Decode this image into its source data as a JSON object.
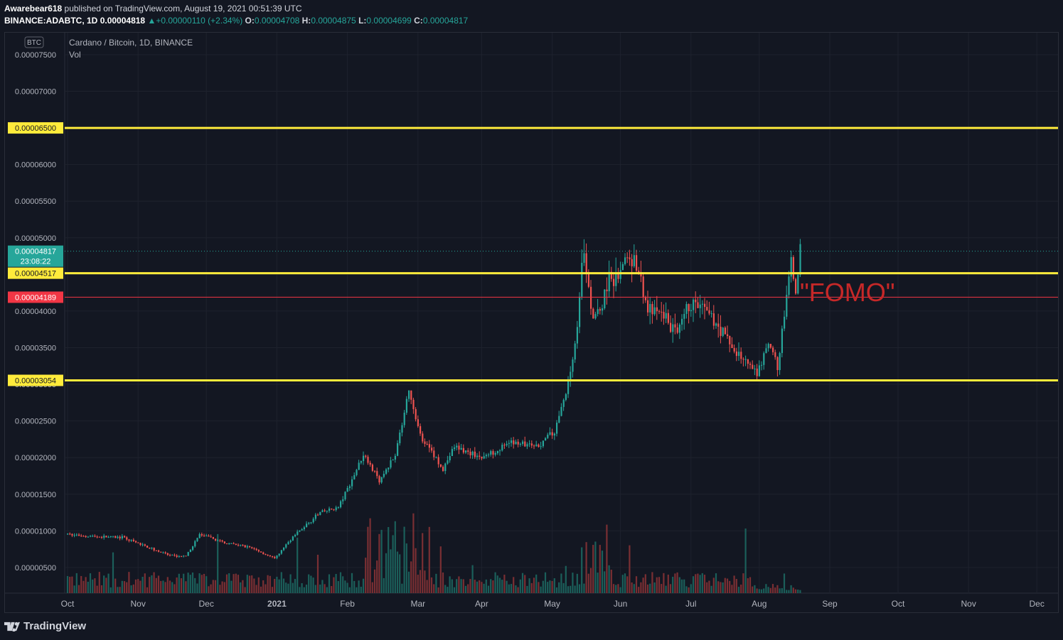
{
  "header": {
    "publisher": "Awarebear618",
    "published_text": "published on TradingView.com, August 19, 2021 00:51:39 UTC",
    "symbol": "BINANCE:ADABTC, 1D",
    "last": "0.00004818",
    "change": "+0.00000110 (+2.34%)",
    "o_label": "O:",
    "o_value": "0.00004708",
    "h_label": "H:",
    "h_value": "0.00004875",
    "l_label": "L:",
    "l_value": "0.00004699",
    "c_label": "C:",
    "c_value": "0.00004817"
  },
  "legend": {
    "title": "Cardano / Bitcoin, 1D, BINANCE",
    "volume_label": "Vol"
  },
  "currency_badge": "BTC",
  "footer": {
    "brand": "TradingView"
  },
  "colors": {
    "background": "#131722",
    "up": "#26a69a",
    "down": "#ef5350",
    "level_line": "#ffeb3b",
    "red_line": "#f23645",
    "annotation": "#c62828"
  },
  "chart_data": {
    "type": "candlestick",
    "x_tick_labels": [
      "Oct",
      "Nov",
      "Dec",
      "2021",
      "Feb",
      "Mar",
      "Apr",
      "May",
      "Jun",
      "Jul",
      "Aug",
      "Sep",
      "Oct",
      "Nov",
      "Dec"
    ],
    "y_tick_labels": [
      "0.00007500",
      "0.00007000",
      "0.00006500",
      "0.00006000",
      "0.00005500",
      "0.00005000",
      "0.00004500",
      "0.00004000",
      "0.00003500",
      "0.00003000",
      "0.00002500",
      "0.00002000",
      "0.00001500",
      "0.00001000",
      "0.00000500"
    ],
    "y_ticks": [
      7.5e-05,
      7e-05,
      6.5e-05,
      6e-05,
      5.5e-05,
      5e-05,
      4.5e-05,
      4e-05,
      3.5e-05,
      3e-05,
      2.5e-05,
      2e-05,
      1.5e-05,
      1e-05,
      5e-06
    ],
    "ylim": [
      1.5e-06,
      7.8e-05
    ],
    "horizontal_levels": [
      {
        "value": 6.5e-05,
        "label": "0.00006500",
        "color": "#ffeb3b"
      },
      {
        "value": 4.517e-05,
        "label": "0.00004517",
        "color": "#ffeb3b"
      },
      {
        "value": 3.054e-05,
        "label": "0.00003054",
        "color": "#ffeb3b"
      },
      {
        "value": 4.189e-05,
        "label": "0.00004189",
        "color": "#f23645"
      }
    ],
    "current_price": {
      "value": 4.817e-05,
      "label": "0.00004817",
      "countdown": "23:08:22"
    },
    "annotation": "\"FOMO\"",
    "series": [
      {
        "name": "Price",
        "type": "candlestick",
        "anchors": [
          [
            "2020-10-01",
            9.5e-06
          ],
          [
            "2020-10-15",
            9.2e-06
          ],
          [
            "2020-10-25",
            9.1e-06
          ],
          [
            "2020-11-05",
            7.8e-06
          ],
          [
            "2020-11-15",
            6.6e-06
          ],
          [
            "2020-11-22",
            6.5e-06
          ],
          [
            "2020-11-28",
            9.5e-06
          ],
          [
            "2020-12-10",
            8.3e-06
          ],
          [
            "2020-12-20",
            7.8e-06
          ],
          [
            "2020-12-31",
            6.2e-06
          ],
          [
            "2021-01-08",
            9.2e-06
          ],
          [
            "2021-01-20",
            1.25e-05
          ],
          [
            "2021-01-28",
            1.32e-05
          ],
          [
            "2021-02-03",
            1.7e-05
          ],
          [
            "2021-02-08",
            2.05e-05
          ],
          [
            "2021-02-15",
            1.68e-05
          ],
          [
            "2021-02-22",
            2.05e-05
          ],
          [
            "2021-02-28",
            2.9e-05
          ],
          [
            "2021-03-05",
            2.3e-05
          ],
          [
            "2021-03-15",
            1.85e-05
          ],
          [
            "2021-03-20",
            2.15e-05
          ],
          [
            "2021-04-01",
            2e-05
          ],
          [
            "2021-04-15",
            2.22e-05
          ],
          [
            "2021-04-25",
            2.15e-05
          ],
          [
            "2021-05-03",
            2.35e-05
          ],
          [
            "2021-05-08",
            2.9e-05
          ],
          [
            "2021-05-12",
            3.5e-05
          ],
          [
            "2021-05-16",
            4.85e-05
          ],
          [
            "2021-05-19",
            4e-05
          ],
          [
            "2021-05-23",
            3.95e-05
          ],
          [
            "2021-05-27",
            4.5e-05
          ],
          [
            "2021-05-30",
            4.4e-05
          ],
          [
            "2021-06-03",
            4.7e-05
          ],
          [
            "2021-06-08",
            4.65e-05
          ],
          [
            "2021-06-13",
            4e-05
          ],
          [
            "2021-06-20",
            3.95e-05
          ],
          [
            "2021-06-26",
            3.65e-05
          ],
          [
            "2021-07-01",
            4.1e-05
          ],
          [
            "2021-07-06",
            4.05e-05
          ],
          [
            "2021-07-13",
            3.85e-05
          ],
          [
            "2021-07-20",
            3.5e-05
          ],
          [
            "2021-07-26",
            3.3e-05
          ],
          [
            "2021-07-31",
            3.12e-05
          ],
          [
            "2021-08-05",
            3.55e-05
          ],
          [
            "2021-08-09",
            3.25e-05
          ],
          [
            "2021-08-12",
            3.95e-05
          ],
          [
            "2021-08-15",
            4.65e-05
          ],
          [
            "2021-08-17",
            4.3e-05
          ],
          [
            "2021-08-19",
            4.82e-05
          ]
        ]
      },
      {
        "name": "Vol",
        "type": "histogram"
      }
    ]
  }
}
